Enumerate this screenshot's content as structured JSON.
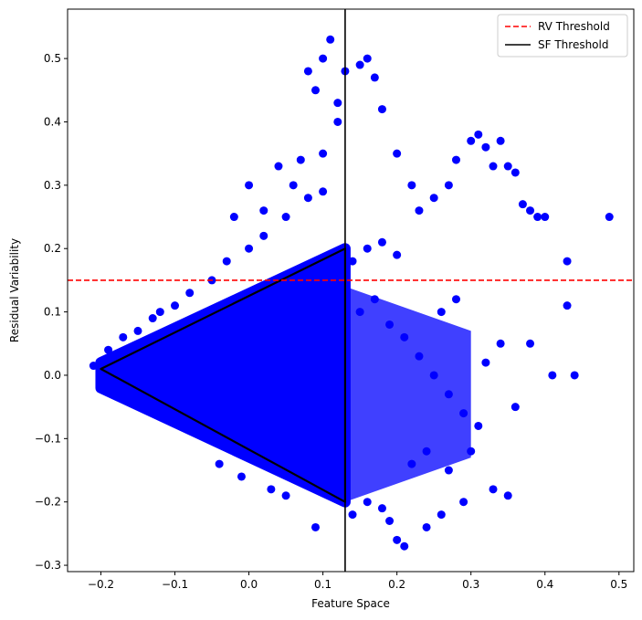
{
  "chart_data": {
    "type": "scatter",
    "title": "",
    "xlabel": "Feature Space",
    "ylabel": "Residual Variability",
    "xlim": [
      -0.245,
      0.52
    ],
    "ylim": [
      -0.31,
      0.578
    ],
    "xticks": [
      -0.2,
      -0.1,
      0.0,
      0.1,
      0.2,
      0.3,
      0.4,
      0.5
    ],
    "xtick_labels": [
      "−0.2",
      "−0.1",
      "0.0",
      "0.1",
      "0.2",
      "0.3",
      "0.4",
      "0.5"
    ],
    "yticks": [
      -0.3,
      -0.2,
      -0.1,
      0.0,
      0.1,
      0.2,
      0.3,
      0.4,
      0.5
    ],
    "ytick_labels": [
      "−0.3",
      "−0.2",
      "−0.1",
      "0.0",
      "0.1",
      "0.2",
      "0.3",
      "0.4",
      "0.5"
    ],
    "grid": false,
    "legend_position": "top-right",
    "point_color": "#0000ff",
    "scatter_x": [
      -0.21,
      -0.2,
      -0.19,
      -0.17,
      -0.15,
      -0.13,
      -0.12,
      -0.1,
      -0.08,
      -0.05,
      -0.03,
      0.0,
      0.02,
      0.05,
      0.08,
      0.1,
      0.12,
      0.09,
      0.11,
      0.1,
      0.08,
      0.12,
      0.13,
      0.15,
      0.16,
      0.17,
      0.18,
      0.2,
      0.22,
      0.23,
      0.25,
      0.27,
      0.28,
      0.3,
      0.31,
      0.32,
      0.33,
      0.34,
      0.35,
      0.36,
      0.37,
      0.38,
      0.39,
      0.4,
      0.43,
      0.43,
      0.44,
      0.487,
      0.2,
      0.21,
      0.19,
      0.24,
      0.26,
      0.29,
      0.33,
      0.35,
      0.14,
      0.16,
      0.18,
      0.22,
      0.24,
      0.3,
      0.27,
      0.09,
      0.05,
      0.03,
      -0.01,
      -0.04,
      -0.12,
      0.06,
      0.04,
      0.02,
      0.1,
      0.07,
      0.0,
      -0.02,
      0.15,
      0.17,
      0.19,
      0.21,
      0.23,
      0.25,
      0.27,
      0.29,
      0.31,
      0.26,
      0.28,
      0.32,
      0.34,
      0.38,
      0.36,
      0.41,
      0.2,
      0.18,
      0.16,
      0.14
    ],
    "scatter_y": [
      0.015,
      0.02,
      0.04,
      0.06,
      0.07,
      0.09,
      0.1,
      0.11,
      0.13,
      0.15,
      0.18,
      0.2,
      0.22,
      0.25,
      0.28,
      0.35,
      0.4,
      0.45,
      0.53,
      0.5,
      0.48,
      0.43,
      0.48,
      0.49,
      0.5,
      0.47,
      0.42,
      0.35,
      0.3,
      0.26,
      0.28,
      0.3,
      0.34,
      0.37,
      0.38,
      0.36,
      0.33,
      0.37,
      0.33,
      0.32,
      0.27,
      0.26,
      0.25,
      0.25,
      0.18,
      0.11,
      0.0,
      0.25,
      -0.26,
      -0.27,
      -0.23,
      -0.24,
      -0.22,
      -0.2,
      -0.18,
      -0.19,
      -0.22,
      -0.2,
      -0.21,
      -0.14,
      -0.12,
      -0.12,
      -0.15,
      -0.24,
      -0.19,
      -0.18,
      -0.16,
      -0.14,
      -0.06,
      0.3,
      0.33,
      0.26,
      0.29,
      0.34,
      0.3,
      0.25,
      0.1,
      0.12,
      0.08,
      0.06,
      0.03,
      0.0,
      -0.03,
      -0.06,
      -0.08,
      0.1,
      0.12,
      0.02,
      0.05,
      0.05,
      -0.05,
      0.0,
      0.19,
      0.21,
      0.2,
      0.18
    ],
    "dense_regions": [
      {
        "x_range": [
          -0.2,
          0.13
        ],
        "y_center": 0.0,
        "y_half_at_left": 0.02,
        "y_half_at_right": 0.2
      },
      {
        "x_range": [
          0.13,
          0.3
        ],
        "y_center": -0.03,
        "y_half_at_left": 0.17,
        "y_half_at_right": 0.1
      }
    ],
    "lines": [
      {
        "name": "RV Threshold",
        "orientation": "horizontal",
        "value": 0.15,
        "color": "#ff0000",
        "style": "dashed"
      },
      {
        "name": "SF Threshold",
        "orientation": "vertical",
        "value": 0.13,
        "color": "#000000",
        "style": "solid"
      }
    ],
    "triangle": {
      "points": [
        [
          -0.2,
          0.01
        ],
        [
          0.13,
          0.2
        ],
        [
          0.13,
          -0.2
        ]
      ],
      "color": "#000000"
    }
  }
}
